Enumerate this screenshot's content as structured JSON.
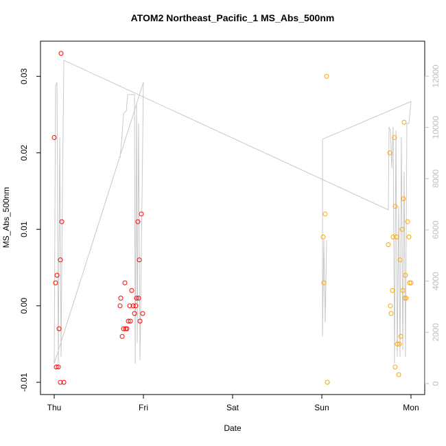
{
  "chart_data": {
    "type": "scatter",
    "title": "ATOM2 Northeast_Pacific_1 MS_Abs_500nm",
    "x_label": "Date",
    "y_label": "MS_Abs_500nm",
    "xlim": [
      -0.154,
      4.154
    ],
    "xticks": [
      {
        "value": 0,
        "label": "Thu"
      },
      {
        "value": 1,
        "label": "Fri"
      },
      {
        "value": 2,
        "label": "Sat"
      },
      {
        "value": 3,
        "label": "Sun"
      },
      {
        "value": 4,
        "label": "Mon"
      }
    ],
    "ylim": [
      -0.0116,
      0.0346
    ],
    "yticks": [
      -0.01,
      {
        "value": 0,
        "label": "0.00"
      },
      0.01,
      0.02,
      0.03
    ],
    "y2lim": [
      -429,
      13366
    ],
    "y2ticks": [
      0,
      2000,
      4000,
      6000,
      8000,
      10000,
      12000
    ],
    "y2_color": "#bebebe",
    "series": [
      {
        "type": "line",
        "axis": "y2",
        "color": "#c8c8c8",
        "x": [
          0.738,
          0.762,
          0.777,
          0.808,
          0.823,
          0.9,
          0.908,
          0.923,
          0.931,
          0.946,
          0.962,
          1.0,
          0,
          0.015,
          0.031,
          0.046,
          0.062,
          0.077,
          0.092,
          0.108,
          3.746,
          3.754,
          3.769,
          3.785,
          3.8,
          3.815,
          3.831,
          3.846,
          3.862,
          3.877,
          3.892,
          3.908,
          3.923,
          3.938,
          3.954,
          3.977,
          4.0,
          3.008,
          3.008,
          3.023,
          3.038,
          3.054
        ],
        "values": [
          8810,
          9750,
          10550,
          10640,
          11280,
          11280,
          780,
          10960,
          1580,
          10150,
          910,
          11760,
          780,
          11630,
          11760,
          780,
          9620,
          1040,
          7470,
          12620,
          6780,
          10020,
          9880,
          8410,
          10020,
          780,
          9880,
          1040,
          6940,
          1040,
          9620,
          1310,
          8280,
          1040,
          10150,
          10150,
          11010,
          9540,
          1850,
          5600,
          2380,
          5600
        ]
      },
      {
        "type": "points",
        "color": "#ff0000",
        "x": [
          0,
          0.015,
          0.031,
          0.023,
          0.046,
          0.054,
          0.069,
          0.077,
          0.085,
          0.069,
          0.108,
          0.738,
          0.746,
          0.762,
          0.777,
          0.792,
          0.8,
          0.815,
          0.831,
          0.846,
          0.854,
          0.869,
          0.885,
          0.9,
          0.915,
          0.923,
          0.938,
          0.946,
          0.954,
          0.962,
          0.977,
          0.992
        ],
        "values": [
          0.022,
          0.003,
          0.004,
          -0.008,
          -0.008,
          -0.003,
          0.006,
          0.033,
          0.011,
          -0.01,
          -0.01,
          0,
          0.001,
          -0.004,
          -0.003,
          0.003,
          -0.003,
          -0.003,
          -0.002,
          0,
          -0.002,
          0.002,
          0,
          -0.001,
          0,
          0.001,
          0.011,
          0.001,
          0.006,
          -0.002,
          0.012,
          -0.001
        ]
      },
      {
        "type": "points",
        "color": "#ffa500",
        "x": [
          3.015,
          3.023,
          3.038,
          3.054,
          3.062,
          3.746,
          3.762,
          3.769,
          3.777,
          3.792,
          3.8,
          3.815,
          3.823,
          3.823,
          3.838,
          3.846,
          3.862,
          3.869,
          3.877,
          3.885,
          3.9,
          3.908,
          3.915,
          3.923,
          3.931,
          3.938,
          3.946,
          3.962,
          3.977,
          3.985,
          4.0
        ],
        "values": [
          0.009,
          0.003,
          0.012,
          0.03,
          -0.01,
          0.008,
          0.02,
          0,
          -0.001,
          0.002,
          0.009,
          0.022,
          -0.008,
          0.013,
          0.009,
          -0.005,
          -0.009,
          -0.005,
          0.006,
          -0.004,
          0.01,
          0.002,
          0.014,
          0.024,
          0.001,
          0.004,
          0.001,
          0.011,
          0.009,
          0.003,
          0.003
        ]
      }
    ]
  }
}
